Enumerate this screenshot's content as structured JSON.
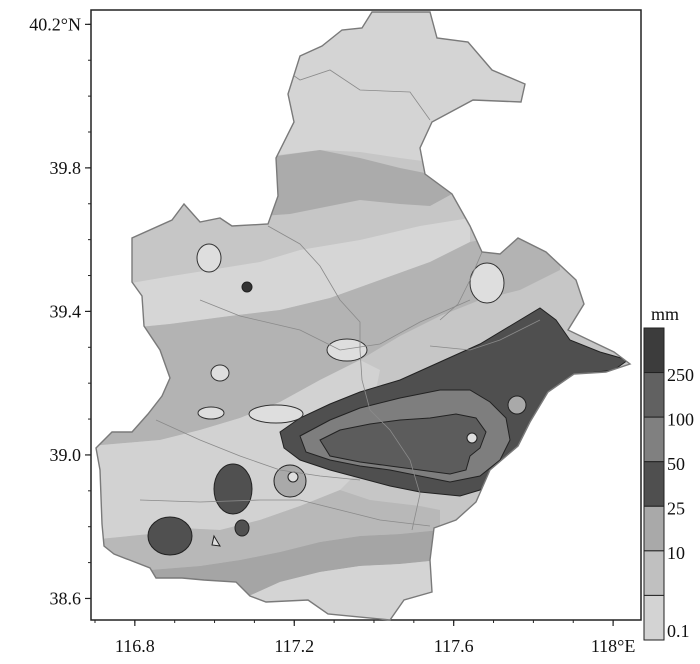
{
  "map": {
    "longitude_ticks": [
      {
        "value": 116.8,
        "label": "116.8"
      },
      {
        "value": 117.2,
        "label": "117.2"
      },
      {
        "value": 117.6,
        "label": "117.6"
      },
      {
        "value": 118.0,
        "label": "118°E"
      }
    ],
    "latitude_ticks": [
      {
        "value": 40.2,
        "label": "40.2°N"
      },
      {
        "value": 39.8,
        "label": "39.8"
      },
      {
        "value": 39.4,
        "label": "39.4"
      },
      {
        "value": 39.0,
        "label": "39.0"
      },
      {
        "value": 38.6,
        "label": "38.6"
      }
    ],
    "lon_range": [
      116.69,
      118.07
    ],
    "lat_range": [
      38.54,
      40.24
    ]
  },
  "legend": {
    "unit": "mm",
    "levels": [
      "0.1",
      "10",
      "25",
      "50",
      "100",
      "250"
    ],
    "bins": [
      {
        "color": "#d3d3d3"
      },
      {
        "color": "#c0c0c0"
      },
      {
        "color": "#a9a9a9"
      },
      {
        "color": "#4f4f4f"
      },
      {
        "color": "#808080"
      },
      {
        "color": "#616161"
      },
      {
        "color": "#3c3c3c"
      }
    ]
  }
}
